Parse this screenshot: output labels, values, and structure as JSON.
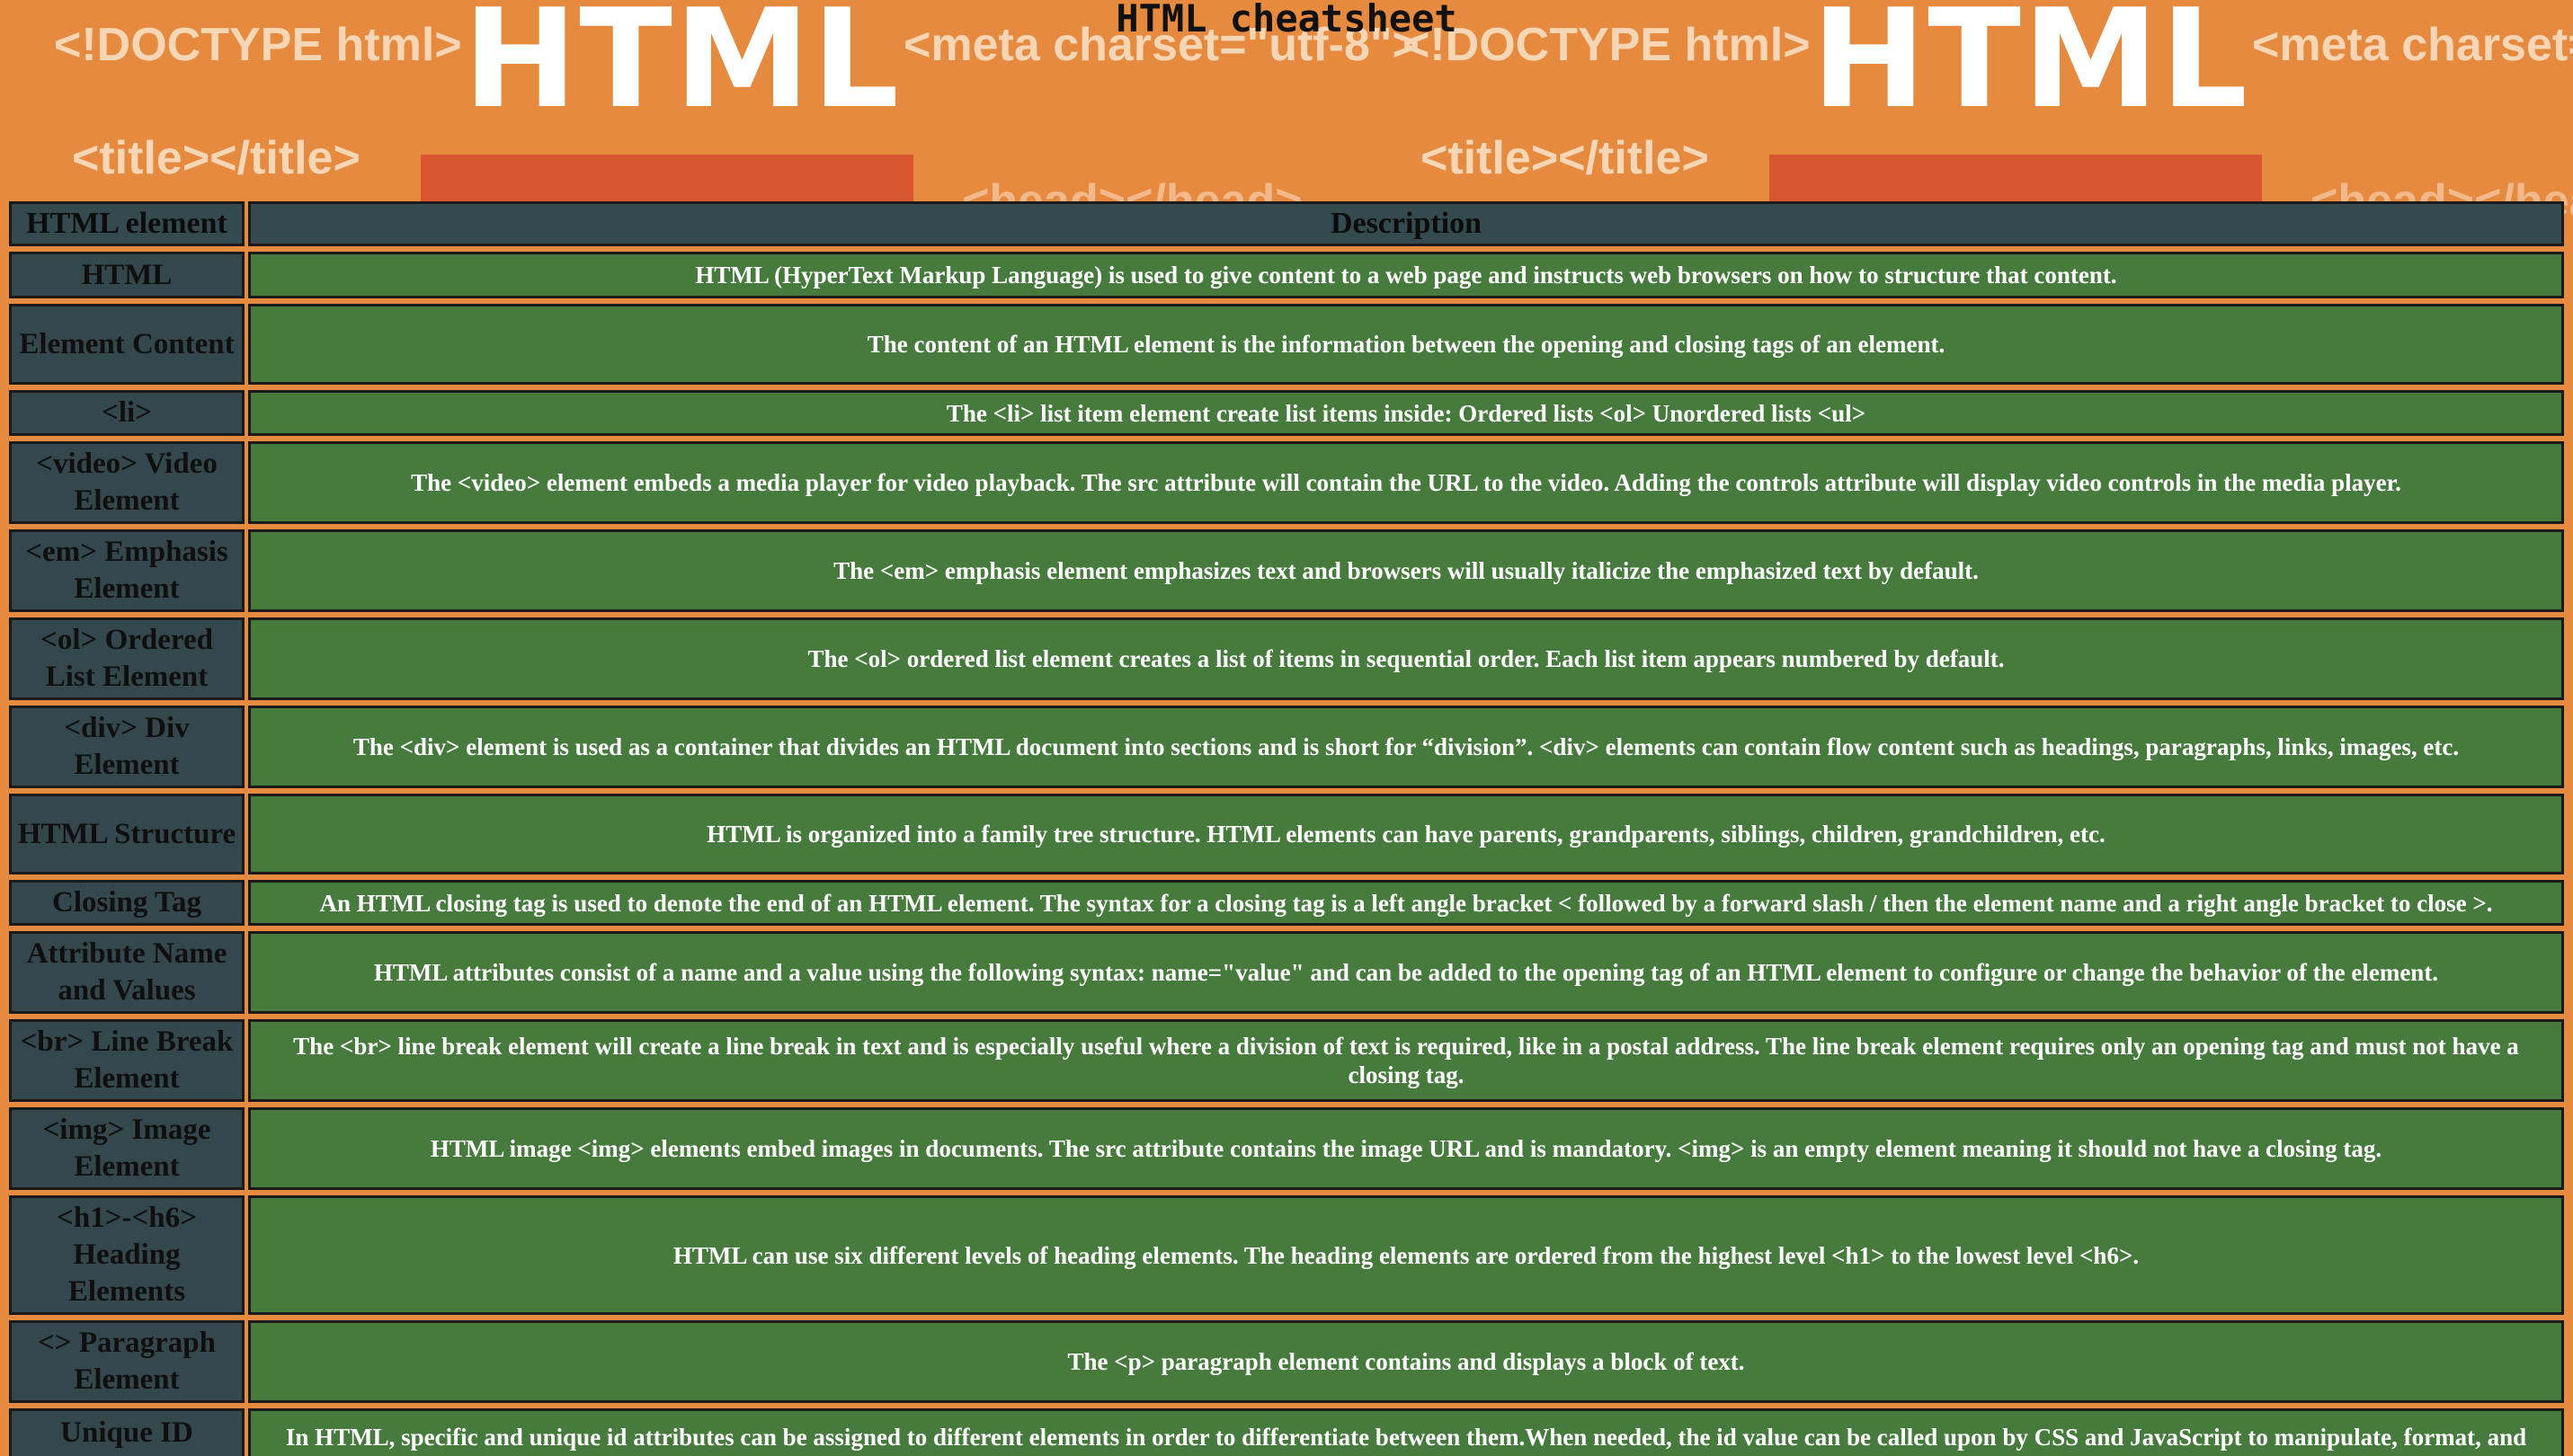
{
  "page": {
    "title": "HTML cheatsheet"
  },
  "banner": {
    "word": "HTML",
    "tags": [
      "<!DOCTYPE html>",
      "<meta charset=\"utf-8\">",
      "<title></title>",
      "<head></head>"
    ]
  },
  "table": {
    "headers": [
      "HTML element",
      "Description"
    ],
    "rows": [
      {
        "element": "HTML",
        "description": "HTML (HyperText Markup Language) is used to give content to a web page and instructs web browsers on how to structure that content."
      },
      {
        "element": "Element Content",
        "description": "The content of an HTML element is the information between the opening and closing tags of an element."
      },
      {
        "element": "<li>",
        "description": "The <li> list item element create list items inside: Ordered lists <ol> Unordered lists <ul>"
      },
      {
        "element": "<video> Video Element",
        "description": "The <video> element embeds a media player for video playback. The src attribute will contain the URL to the video. Adding the controls attribute will display video controls in the media player."
      },
      {
        "element": "<em> Emphasis Element",
        "description": "The <em> emphasis element emphasizes text and browsers will usually italicize the emphasized text by default."
      },
      {
        "element": "<ol> Ordered List Element",
        "description": "The <ol> ordered list element creates a list of items in sequential order. Each list item appears numbered by default."
      },
      {
        "element": "<div> Div Element",
        "description": "The <div> element is used as a container that divides an HTML document into sections and is short for “division”. <div> elements can contain flow content such as headings, paragraphs, links, images, etc."
      },
      {
        "element": "HTML Structure",
        "description": "HTML is organized into a family tree structure. HTML elements can have parents, grandparents, siblings, children, grandchildren, etc."
      },
      {
        "element": "Closing Tag",
        "description": "An HTML closing tag is used to denote the end of an HTML element. The syntax for a closing tag is a left angle bracket < followed by a forward slash / then the element name and a right angle bracket to close >."
      },
      {
        "element": "Attribute Name and Values",
        "description": "HTML attributes consist of a name and a value using the following syntax: name=\"value\" and can be added to the opening tag of an HTML element to configure or change the behavior of the element."
      },
      {
        "element": "<br> Line Break Element",
        "description": "The <br> line break element will create a line break in text and is especially useful where a division of text is required, like in a postal address. The line break element requires only an opening tag and must not have a closing tag."
      },
      {
        "element": "<img> Image Element",
        "description": "HTML image <img> elements embed images in documents. The src attribute contains the image URL and is mandatory. <img> is an empty element meaning it should not have a closing tag."
      },
      {
        "element": "<h1>-<h6> Heading Elements",
        "description": "HTML can use six different levels of heading elements. The heading elements are ordered from the highest level <h1> to the lowest level <h6>."
      },
      {
        "element": "<> Paragraph Element",
        "description": "The <p> paragraph element contains and displays a block of text."
      },
      {
        "element": "Unique ID Attributes",
        "description": "In HTML, specific and unique id attributes can be assigned to different elements in order to differentiate between them.When needed, the id value can be called upon by CSS and JavaScript to manipulate, format, and perform specific instructions on that element and that element only. Valid id attributes should begin with a letter and should only contain letters (a-Z), digits (0-9), hyphens (-), underscores (_), and periods (.)."
      }
    ]
  }
}
